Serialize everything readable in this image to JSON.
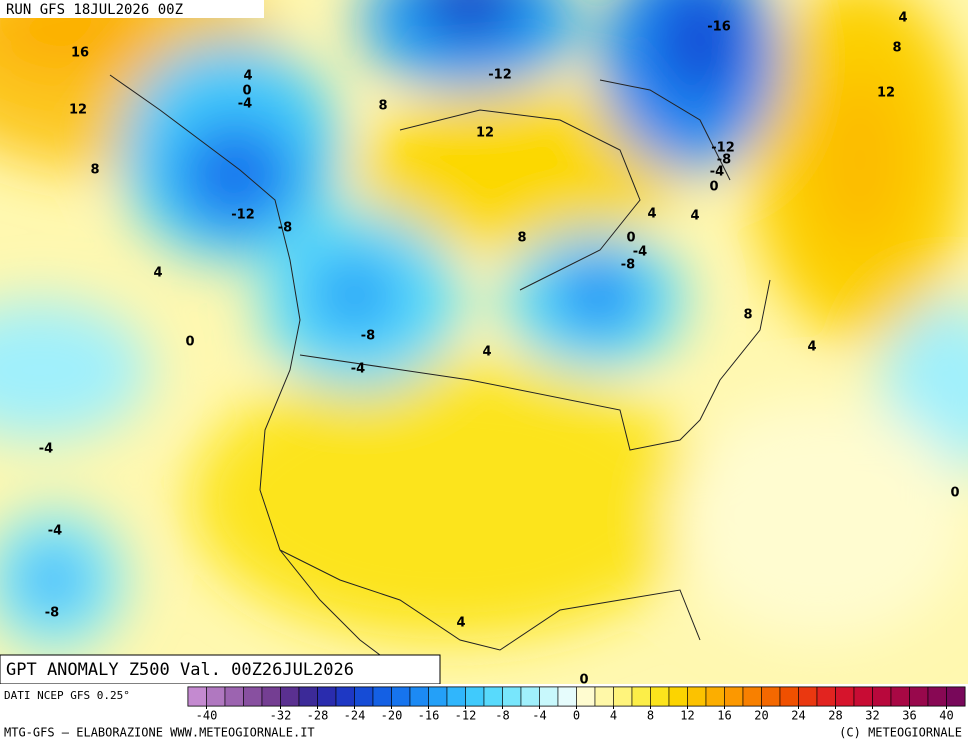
{
  "header": {
    "run": "RUN GFS 18JUL2026 00Z"
  },
  "map": {
    "title": "GPT ANOMALY Z500 Val. 00Z26JUL2026",
    "contour_labels": [
      16,
      12,
      8,
      4,
      0,
      -4,
      -4,
      -8,
      4,
      0,
      -4,
      -12,
      -8,
      8,
      -8,
      -4,
      4,
      -12,
      12,
      8,
      0,
      -4,
      -8,
      4,
      4,
      -16,
      -12,
      -8,
      -4,
      0,
      4,
      8,
      12,
      8,
      4,
      0,
      4,
      0
    ]
  },
  "legend": {
    "source": "DATI NCEP GFS 0.25°",
    "range": [
      -42,
      42
    ],
    "ticks": [
      -40,
      -32,
      -28,
      -24,
      -20,
      -16,
      -12,
      -8,
      -4,
      0,
      4,
      8,
      12,
      16,
      20,
      24,
      28,
      32,
      36,
      40
    ],
    "colors": [
      "#c48ad0",
      "#b078c0",
      "#9c64b0",
      "#8850a0",
      "#743e92",
      "#5a3090",
      "#3c2a98",
      "#2a2cae",
      "#1e38c4",
      "#164cd6",
      "#1460e4",
      "#1674ee",
      "#1c8af4",
      "#24a0f8",
      "#30b6fc",
      "#40cafc",
      "#58dafc",
      "#78e6fc",
      "#a0f0fc",
      "#c8f8fc",
      "#e6fcfc",
      "#fffcd0",
      "#fff8a8",
      "#fff47c",
      "#fcee48",
      "#fce41c",
      "#fcd400",
      "#fcc200",
      "#fcae00",
      "#fc9800",
      "#f88000",
      "#f46800",
      "#f05000",
      "#ea3810",
      "#e22420",
      "#d6142c",
      "#c80c34",
      "#b8083c",
      "#a80844",
      "#98084c",
      "#880854",
      "#78085a"
    ]
  },
  "footer": {
    "left": "MTG-GFS — ELABORAZIONE WWW.METEOGIORNALE.IT",
    "right": "(C) METEOGIORNALE"
  }
}
